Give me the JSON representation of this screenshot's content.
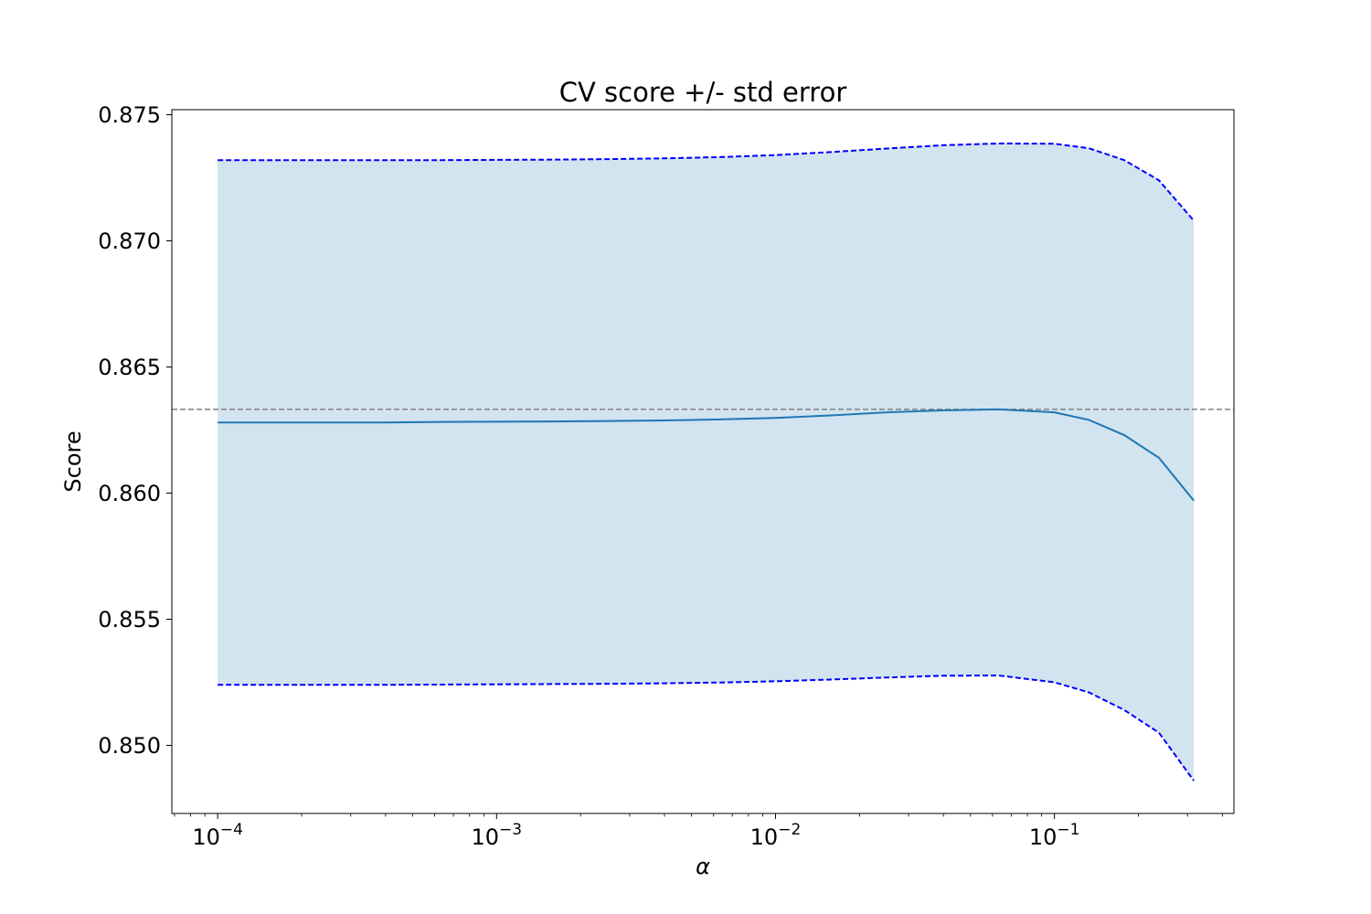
{
  "chart_data": {
    "type": "line",
    "title": "CV score +/- std error",
    "xlabel": "α",
    "ylabel": "Score",
    "xscale": "log",
    "xlim": [
      6.85e-05,
      0.44
    ],
    "ylim": [
      0.8473,
      0.8752
    ],
    "x_ticks": [
      {
        "value": 0.0001,
        "base": "10",
        "exponent": "−4"
      },
      {
        "value": 0.001,
        "base": "10",
        "exponent": "−3"
      },
      {
        "value": 0.01,
        "base": "10",
        "exponent": "−2"
      },
      {
        "value": 0.1,
        "base": "10",
        "exponent": "−1"
      }
    ],
    "y_ticks": [
      "0.850",
      "0.855",
      "0.860",
      "0.865",
      "0.870",
      "0.875"
    ],
    "grid": false,
    "x": [
      0.0001,
      0.000158,
      0.000251,
      0.000398,
      0.000631,
      0.001,
      0.00158,
      0.00251,
      0.00398,
      0.00631,
      0.01,
      0.0158,
      0.0251,
      0.0398,
      0.0631,
      0.1,
      0.133,
      0.178,
      0.237,
      0.316
    ],
    "series": [
      {
        "role": "mean",
        "style": "solid",
        "color": "#1f77b4",
        "values": [
          0.8628,
          0.8628,
          0.8628,
          0.8628,
          0.86282,
          0.86283,
          0.86284,
          0.86286,
          0.86288,
          0.86292,
          0.86298,
          0.86308,
          0.8632,
          0.86328,
          0.86332,
          0.8632,
          0.8629,
          0.8623,
          0.8614,
          0.8597
        ]
      },
      {
        "role": "mean + std error",
        "style": "dashed",
        "color": "#0000ff",
        "values": [
          0.8732,
          0.8732,
          0.8732,
          0.8732,
          0.8732,
          0.87321,
          0.87322,
          0.87324,
          0.87327,
          0.87332,
          0.8734,
          0.87352,
          0.87366,
          0.87379,
          0.87386,
          0.87385,
          0.87367,
          0.8732,
          0.8724,
          0.8708
        ]
      },
      {
        "role": "mean - std error",
        "style": "dashed",
        "color": "#0000ff",
        "values": [
          0.8524,
          0.8524,
          0.8524,
          0.8524,
          0.85241,
          0.85242,
          0.85243,
          0.85244,
          0.85246,
          0.85249,
          0.85254,
          0.85261,
          0.85269,
          0.85276,
          0.85277,
          0.8525,
          0.8521,
          0.8514,
          0.8505,
          0.8486
        ]
      }
    ],
    "fill_between": {
      "color": "#1f77b4",
      "opacity": 0.2
    },
    "hline": {
      "value": 0.86332,
      "style": "dashed",
      "color": "#808080"
    }
  }
}
